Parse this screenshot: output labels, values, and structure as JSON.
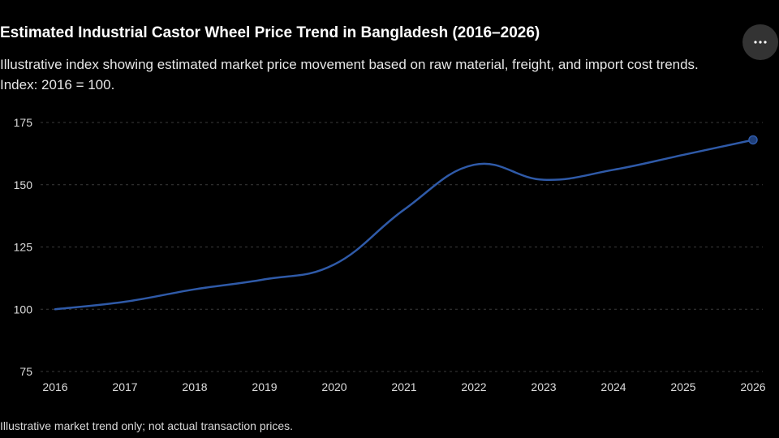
{
  "header": {
    "title": "Estimated Industrial Castor Wheel Price Trend in Bangladesh (2016–2026)",
    "subtitle": "Illustrative index showing estimated market price movement based on raw material, freight, and import cost trends. Index: 2016 = 100."
  },
  "menu": {
    "icon": "more-horizontal-icon"
  },
  "footer": {
    "note": "Illustrative market trend only; not actual transaction prices."
  },
  "colors": {
    "background": "#000000",
    "line": "#2f5aa8",
    "marker": "#1f3f7a",
    "grid": "#3a3a3a",
    "axis_text": "#dcdcdc"
  },
  "chart_data": {
    "type": "line",
    "x": [
      "2016",
      "2017",
      "2018",
      "2019",
      "2020",
      "2021",
      "2022",
      "2023",
      "2024",
      "2025",
      "2026"
    ],
    "series": [
      {
        "values": [
          100,
          103,
          108,
          112,
          118,
          140,
          158,
          152,
          156,
          162,
          168
        ]
      }
    ],
    "ylim": [
      75,
      175
    ],
    "yticks": [
      175,
      150,
      125,
      100,
      75
    ],
    "grid": true,
    "highlight_last_point": true
  }
}
